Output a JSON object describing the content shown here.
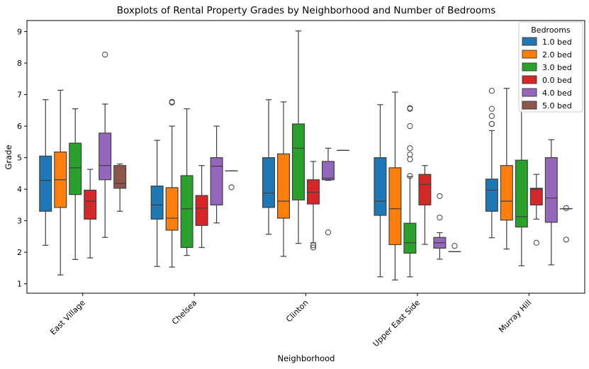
{
  "chart_data": {
    "type": "box",
    "title": "Boxplots of Rental Property Grades by Neighborhood and Number of Bedrooms",
    "xlabel": "Neighborhood",
    "ylabel": "Grade",
    "ylim": [
      0.7,
      9.35
    ],
    "yticks": [
      "1",
      "2",
      "3",
      "4",
      "5",
      "6",
      "7",
      "8",
      "9"
    ],
    "categories": [
      "East Village",
      "Chelsea",
      "Clinton",
      "Upper East Side",
      "Murray Hill"
    ],
    "grid": false,
    "legend": {
      "title": "Bedrooms",
      "placement": "top-right",
      "entries": [
        "1.0 bed",
        "2.0 bed",
        "3.0 bed",
        "0.0 bed",
        "4.0 bed",
        "5.0 bed"
      ]
    },
    "series": [
      {
        "name": "1.0 bed",
        "color": "#1f77b4",
        "boxes": [
          {
            "category": "East Village",
            "whislo": 2.22,
            "q1": 3.3,
            "med": 4.28,
            "q3": 5.05,
            "whishi": 6.84,
            "fliers": []
          },
          {
            "category": "Chelsea",
            "whislo": 1.55,
            "q1": 3.05,
            "med": 3.5,
            "q3": 4.1,
            "whishi": 5.55,
            "fliers": []
          },
          {
            "category": "Clinton",
            "whislo": 2.57,
            "q1": 3.42,
            "med": 3.88,
            "q3": 5.0,
            "whishi": 6.84,
            "fliers": []
          },
          {
            "category": "Upper East Side",
            "whislo": 1.22,
            "q1": 3.17,
            "med": 3.62,
            "q3": 5.0,
            "whishi": 6.68,
            "fliers": []
          },
          {
            "category": "Murray Hill",
            "whislo": 2.46,
            "q1": 3.3,
            "med": 3.97,
            "q3": 4.32,
            "whishi": 5.86,
            "fliers": [
              6.07,
              6.07,
              6.32,
              6.55,
              7.12
            ]
          }
        ]
      },
      {
        "name": "2.0 bed",
        "color": "#ff7f0e",
        "boxes": [
          {
            "category": "East Village",
            "whislo": 1.28,
            "q1": 3.42,
            "med": 4.3,
            "q3": 5.18,
            "whishi": 7.14,
            "fliers": []
          },
          {
            "category": "Chelsea",
            "whislo": 1.53,
            "q1": 2.7,
            "med": 3.08,
            "q3": 4.05,
            "whishi": 6.0,
            "fliers": [
              6.75,
              6.77
            ]
          },
          {
            "category": "Clinton",
            "whislo": 1.87,
            "q1": 3.08,
            "med": 3.62,
            "q3": 5.12,
            "whishi": 6.77,
            "fliers": []
          },
          {
            "category": "Upper East Side",
            "whislo": 1.12,
            "q1": 2.24,
            "med": 3.38,
            "q3": 4.68,
            "whishi": 7.08,
            "fliers": []
          },
          {
            "category": "Murray Hill",
            "whislo": 2.1,
            "q1": 3.02,
            "med": 3.62,
            "q3": 4.75,
            "whishi": 7.2,
            "fliers": []
          }
        ]
      },
      {
        "name": "3.0 bed",
        "color": "#2ca02c",
        "boxes": [
          {
            "category": "East Village",
            "whislo": 1.77,
            "q1": 3.83,
            "med": 4.68,
            "q3": 5.46,
            "whishi": 6.55,
            "fliers": []
          },
          {
            "category": "Chelsea",
            "whislo": 1.9,
            "q1": 2.15,
            "med": 3.38,
            "q3": 4.43,
            "whishi": 6.55,
            "fliers": []
          },
          {
            "category": "Clinton",
            "whislo": 2.28,
            "q1": 3.66,
            "med": 5.3,
            "q3": 6.07,
            "whishi": 9.02,
            "fliers": []
          },
          {
            "category": "Upper East Side",
            "whislo": 1.22,
            "q1": 1.97,
            "med": 2.3,
            "q3": 2.92,
            "whishi": 4.4,
            "fliers": [
              4.42,
              4.95,
              5.1,
              5.3,
              6.0,
              6.55,
              6.57
            ]
          },
          {
            "category": "Murray Hill",
            "whislo": 1.57,
            "q1": 2.8,
            "med": 3.13,
            "q3": 4.92,
            "whishi": 6.9,
            "fliers": []
          }
        ]
      },
      {
        "name": "0.0 bed",
        "color": "#d62728",
        "boxes": [
          {
            "category": "East Village",
            "whislo": 1.82,
            "q1": 3.05,
            "med": 3.62,
            "q3": 3.97,
            "whishi": 4.63,
            "fliers": []
          },
          {
            "category": "Chelsea",
            "whislo": 2.15,
            "q1": 2.85,
            "med": 3.4,
            "q3": 3.8,
            "whishi": 4.75,
            "fliers": []
          },
          {
            "category": "Clinton",
            "whislo": 2.3,
            "q1": 3.53,
            "med": 3.9,
            "q3": 4.3,
            "whishi": 4.88,
            "fliers": [
              2.15,
              2.22
            ]
          },
          {
            "category": "Upper East Side",
            "whislo": 2.25,
            "q1": 3.5,
            "med": 4.15,
            "q3": 4.47,
            "whishi": 4.75,
            "fliers": []
          },
          {
            "category": "Murray Hill",
            "whislo": 3.05,
            "q1": 3.5,
            "med": 4.0,
            "q3": 4.03,
            "whishi": 4.47,
            "fliers": [
              2.3
            ]
          }
        ]
      },
      {
        "name": "4.0 bed",
        "color": "#9467bd",
        "boxes": [
          {
            "category": "East Village",
            "whislo": 2.47,
            "q1": 4.3,
            "med": 4.75,
            "q3": 5.78,
            "whishi": 6.7,
            "fliers": [
              8.27
            ]
          },
          {
            "category": "Chelsea",
            "whislo": 2.93,
            "q1": 3.5,
            "med": 4.73,
            "q3": 5.0,
            "whishi": 6.0,
            "fliers": []
          },
          {
            "category": "Clinton",
            "whislo": 4.28,
            "q1": 4.3,
            "med": 4.35,
            "q3": 4.88,
            "whishi": 5.3,
            "fliers": [
              2.63
            ]
          },
          {
            "category": "Upper East Side",
            "whislo": 1.78,
            "q1": 2.13,
            "med": 2.3,
            "q3": 2.47,
            "whishi": 2.62,
            "fliers": [
              3.1,
              3.78
            ]
          },
          {
            "category": "Murray Hill",
            "whislo": 1.6,
            "q1": 2.95,
            "med": 3.72,
            "q3": 5.0,
            "whishi": 5.57,
            "fliers": []
          }
        ]
      },
      {
        "name": "5.0 bed",
        "color": "#8c564b",
        "boxes": [
          {
            "category": "East Village",
            "whislo": 3.3,
            "q1": 4.03,
            "med": 4.18,
            "q3": 4.75,
            "whishi": 4.8,
            "fliers": []
          },
          {
            "category": "Chelsea",
            "whislo": 4.58,
            "q1": 4.58,
            "med": 4.58,
            "q3": 4.58,
            "whishi": 4.58,
            "fliers": [
              4.06
            ]
          },
          {
            "category": "Clinton",
            "whislo": 5.23,
            "q1": 5.23,
            "med": 5.23,
            "q3": 5.23,
            "whishi": 5.23,
            "fliers": []
          },
          {
            "category": "Upper East Side",
            "whislo": 2.02,
            "q1": 2.02,
            "med": 2.02,
            "q3": 2.02,
            "whishi": 2.02,
            "fliers": [
              2.2
            ]
          },
          {
            "category": "Murray Hill",
            "whislo": 3.38,
            "q1": 3.38,
            "med": 3.38,
            "q3": 3.38,
            "whishi": 3.38,
            "fliers": [
              2.4,
              3.4
            ]
          }
        ]
      }
    ]
  }
}
